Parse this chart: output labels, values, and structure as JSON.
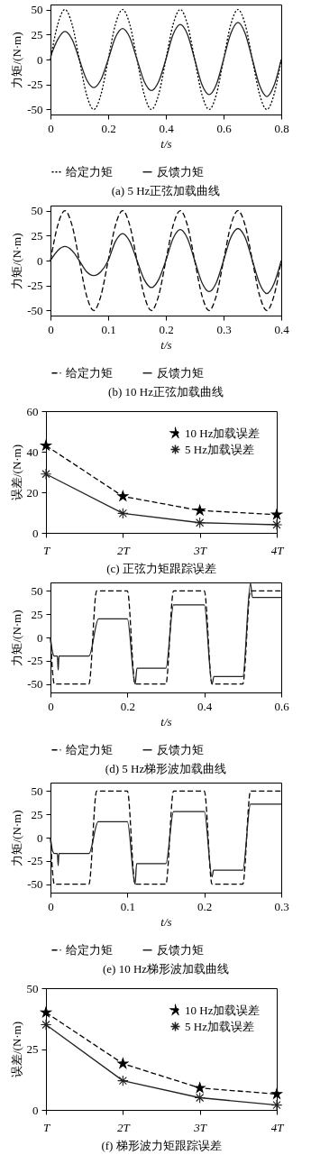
{
  "chart_data": [
    {
      "type": "line",
      "title": "(a) 5 Hz正弦加载曲线",
      "xlabel": "t/s",
      "ylabel": "力矩/(N·m)",
      "xlim": [
        0,
        0.8
      ],
      "xticks": [
        0,
        0.2,
        0.4,
        0.6,
        0.8
      ],
      "ylim": [
        -55,
        55
      ],
      "yticks": [
        -50,
        -25,
        0,
        25,
        50
      ],
      "legend": "bottom",
      "series": [
        {
          "name": "给定力矩",
          "color": "#000000",
          "line_style": "dotted",
          "x": [
            0,
            0.025,
            0.05,
            0.075,
            0.1,
            0.125,
            0.15,
            0.175,
            0.2,
            0.225,
            0.25,
            0.275,
            0.3,
            0.325,
            0.35,
            0.375,
            0.4,
            0.425,
            0.45,
            0.475,
            0.5,
            0.525,
            0.55,
            0.575,
            0.6,
            0.625,
            0.65,
            0.675,
            0.7,
            0.725,
            0.75,
            0.775,
            0.8
          ],
          "values": [
            0,
            35,
            50,
            35,
            0,
            -35,
            -50,
            -35,
            0,
            35,
            50,
            35,
            0,
            -35,
            -50,
            -35,
            0,
            35,
            50,
            35,
            0,
            -35,
            -50,
            -35,
            0,
            35,
            50,
            35,
            0,
            -35,
            -50,
            -35,
            0
          ]
        },
        {
          "name": "反馈力矩",
          "color": "#222222",
          "line_style": "solid",
          "x": [
            0,
            0.025,
            0.05,
            0.075,
            0.1,
            0.125,
            0.15,
            0.175,
            0.2,
            0.225,
            0.25,
            0.275,
            0.3,
            0.325,
            0.35,
            0.375,
            0.4,
            0.425,
            0.45,
            0.475,
            0.5,
            0.525,
            0.55,
            0.575,
            0.6,
            0.625,
            0.65,
            0.675,
            0.7,
            0.725,
            0.75,
            0.775,
            0.8
          ],
          "values": [
            3,
            20,
            28,
            20,
            0,
            -20,
            -28,
            -20,
            0,
            22,
            31,
            22,
            0,
            -22,
            -31,
            -22,
            0,
            25,
            35,
            25,
            0,
            -25,
            -35,
            -25,
            0,
            26,
            37,
            26,
            0,
            -26,
            -37,
            -26,
            0
          ]
        }
      ]
    },
    {
      "type": "line",
      "title": "(b) 10 Hz正弦加载曲线",
      "xlabel": "t/s",
      "ylabel": "力矩/(N·m)",
      "xlim": [
        0,
        0.4
      ],
      "xticks": [
        0,
        0.1,
        0.2,
        0.3,
        0.4
      ],
      "ylim": [
        -55,
        55
      ],
      "yticks": [
        -50,
        -25,
        0,
        25,
        50
      ],
      "legend": "bottom",
      "series": [
        {
          "name": "给定力矩",
          "color": "#000000",
          "line_style": "dashed",
          "x": [
            0,
            0.0125,
            0.025,
            0.0375,
            0.05,
            0.0625,
            0.075,
            0.0875,
            0.1,
            0.1125,
            0.125,
            0.1375,
            0.15,
            0.1625,
            0.175,
            0.1875,
            0.2,
            0.2125,
            0.225,
            0.2375,
            0.25,
            0.2625,
            0.275,
            0.2875,
            0.3,
            0.3125,
            0.325,
            0.3375,
            0.35,
            0.3625,
            0.375,
            0.3875,
            0.4
          ],
          "values": [
            0,
            35,
            50,
            35,
            0,
            -35,
            -50,
            -35,
            0,
            35,
            50,
            35,
            0,
            -35,
            -50,
            -35,
            0,
            35,
            50,
            35,
            0,
            -35,
            -50,
            -35,
            0,
            35,
            50,
            35,
            0,
            -35,
            -50,
            -35,
            0
          ]
        },
        {
          "name": "反馈力矩",
          "color": "#222222",
          "line_style": "solid",
          "x": [
            0,
            0.0125,
            0.025,
            0.0375,
            0.05,
            0.0625,
            0.075,
            0.0875,
            0.1,
            0.1125,
            0.125,
            0.1375,
            0.15,
            0.1625,
            0.175,
            0.1875,
            0.2,
            0.2125,
            0.225,
            0.2375,
            0.25,
            0.2625,
            0.275,
            0.2875,
            0.3,
            0.3125,
            0.325,
            0.3375,
            0.35,
            0.3625,
            0.375,
            0.3875,
            0.4
          ],
          "values": [
            0,
            10,
            14,
            10,
            0,
            -11,
            -15,
            -11,
            0,
            19,
            27,
            19,
            0,
            -19,
            -27,
            -19,
            0,
            22,
            31,
            22,
            0,
            -22,
            -31,
            -22,
            0,
            23,
            32,
            23,
            0,
            -23,
            -33,
            -23,
            0
          ]
        }
      ]
    },
    {
      "type": "line",
      "title": "(c) 正弦力矩跟踪误差",
      "ylabel": "误差/(N·m)",
      "categories": [
        "T",
        "2T",
        "3T",
        "4T"
      ],
      "ylim": [
        0,
        60
      ],
      "yticks": [
        0,
        20,
        40,
        60
      ],
      "legend": "top right",
      "series": [
        {
          "name": "10 Hz加载误差",
          "color": "#000000",
          "line_style": "dashed",
          "marker": "star",
          "values": [
            43,
            18,
            11,
            9
          ]
        },
        {
          "name": "5 Hz加载误差",
          "color": "#222222",
          "line_style": "solid",
          "marker": "cross",
          "values": [
            29,
            9.6,
            5,
            4
          ]
        }
      ]
    },
    {
      "type": "line",
      "title": "(d) 5 Hz梯形波加载曲线",
      "xlabel": "t/s",
      "ylabel": "力矩/(N·m)",
      "xlim": [
        0,
        0.6
      ],
      "xticks": [
        0,
        0.2,
        0.4,
        0.6
      ],
      "ylim": [
        -59,
        59
      ],
      "yticks": [
        -50,
        -25,
        0,
        25,
        50
      ],
      "legend": "bottom",
      "series": [
        {
          "name": "给定力矩",
          "color": "#000000",
          "line_style": "dashed",
          "x": [
            0,
            0.01,
            0.1,
            0.12,
            0.2,
            0.22,
            0.3,
            0.32,
            0.4,
            0.42,
            0.5,
            0.52,
            0.6
          ],
          "values": [
            0,
            -50,
            -50,
            50,
            50,
            -50,
            -50,
            50,
            50,
            -50,
            -50,
            50,
            50
          ]
        },
        {
          "name": "反馈力矩",
          "color": "#222222",
          "line_style": "solid",
          "x": [
            0,
            0.005,
            0.01,
            0.018,
            0.02,
            0.022,
            0.1,
            0.125,
            0.2,
            0.22,
            0.225,
            0.3,
            0.32,
            0.4,
            0.42,
            0.425,
            0.5,
            0.52,
            0.525,
            0.6
          ],
          "values": [
            0,
            -15,
            -20,
            -20,
            -35,
            -20,
            -20,
            20,
            20,
            -50,
            -33,
            -33,
            35,
            35,
            -50,
            -42,
            -42,
            58,
            43,
            43
          ]
        }
      ]
    },
    {
      "type": "line",
      "title": "(e) 10 Hz梯形波加载曲线",
      "xlabel": "t/s",
      "ylabel": "力矩/(N·m)",
      "xlim": [
        0,
        0.3
      ],
      "xticks": [
        0,
        0.1,
        0.2,
        0.3
      ],
      "ylim": [
        -59,
        59
      ],
      "yticks": [
        -50,
        -25,
        0,
        25,
        50
      ],
      "legend": "bottom",
      "series": [
        {
          "name": "给定力矩",
          "color": "#000000",
          "line_style": "dashed",
          "x": [
            0,
            0.005,
            0.05,
            0.06,
            0.1,
            0.11,
            0.15,
            0.16,
            0.2,
            0.21,
            0.25,
            0.26,
            0.3
          ],
          "values": [
            0,
            -50,
            -50,
            50,
            50,
            -50,
            -50,
            50,
            50,
            -50,
            -50,
            50,
            50
          ]
        },
        {
          "name": "反馈力矩",
          "color": "#222222",
          "line_style": "solid",
          "x": [
            0,
            0.003,
            0.005,
            0.009,
            0.01,
            0.011,
            0.05,
            0.062,
            0.1,
            0.11,
            0.112,
            0.15,
            0.16,
            0.2,
            0.21,
            0.212,
            0.25,
            0.26,
            0.3
          ],
          "values": [
            0,
            -15,
            -17,
            -17,
            -30,
            -17,
            -17,
            17,
            17,
            -50,
            -28,
            -28,
            28,
            28,
            -42,
            -35,
            -35,
            36,
            36
          ]
        }
      ]
    },
    {
      "type": "line",
      "title": "(f) 梯形波力矩跟踪误差",
      "ylabel": "误差/(N·m)",
      "categories": [
        "T",
        "2T",
        "3T",
        "4T"
      ],
      "ylim": [
        0,
        50
      ],
      "yticks": [
        0,
        25,
        50
      ],
      "legend": "top right",
      "series": [
        {
          "name": "10 Hz加载误差",
          "color": "#000000",
          "line_style": "dashed",
          "marker": "star",
          "values": [
            40,
            19,
            9,
            6.5
          ]
        },
        {
          "name": "5 Hz加载误差",
          "color": "#222222",
          "line_style": "solid",
          "marker": "cross",
          "values": [
            35,
            12,
            5,
            2
          ]
        }
      ]
    }
  ]
}
